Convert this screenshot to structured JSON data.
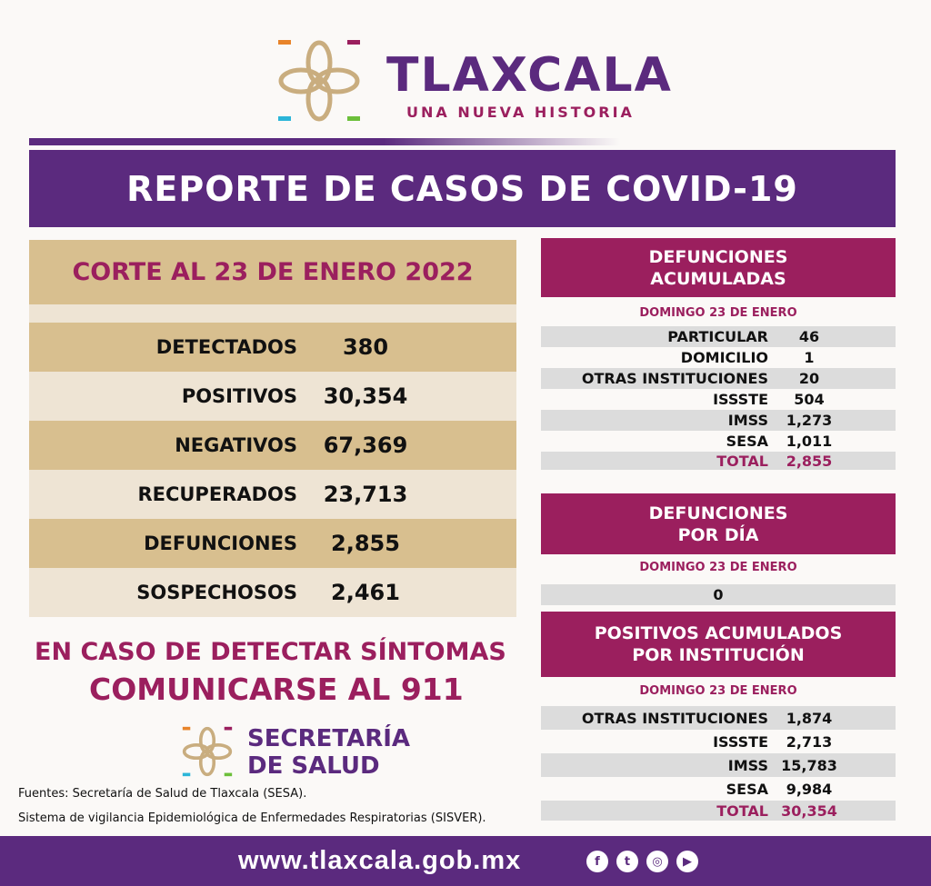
{
  "brand": {
    "title": "TLAXCALA",
    "subtitle": "UNA NUEVA HISTORIA"
  },
  "banner": "REPORTE DE CASOS DE COVID-19",
  "summary": {
    "header": "CORTE AL 23 DE ENERO 2022",
    "rows": [
      {
        "label": "DETECTADOS",
        "value": "380"
      },
      {
        "label": "POSITIVOS",
        "value": "30,354"
      },
      {
        "label": "NEGATIVOS",
        "value": "67,369"
      },
      {
        "label": "RECUPERADOS",
        "value": "23,713"
      },
      {
        "label": "DEFUNCIONES",
        "value": "2,855"
      },
      {
        "label": "SOSPECHOSOS",
        "value": "2,461"
      }
    ]
  },
  "cta": {
    "line1": "EN CASO DE DETECTAR SÍNTOMAS",
    "line2": "COMUNICARSE AL 911"
  },
  "secretaria": {
    "line1": "SECRETARÍA",
    "line2": "DE SALUD"
  },
  "sources": {
    "line1": "Fuentes:  Secretaría de Salud de Tlaxcala (SESA).",
    "line2": "Sistema de vigilancia Epidemiológica de Enfermedades Respiratorias (SISVER)."
  },
  "def_acum": {
    "title1": "DEFUNCIONES",
    "title2": "ACUMULADAS",
    "date": "DOMINGO 23 DE ENERO",
    "rows": [
      {
        "label": "PARTICULAR",
        "value": "46"
      },
      {
        "label": "DOMICILIO",
        "value": "1"
      },
      {
        "label": "OTRAS INSTITUCIONES",
        "value": "20"
      },
      {
        "label": "ISSSTE",
        "value": "504"
      },
      {
        "label": "IMSS",
        "value": "1,273"
      },
      {
        "label": "SESA",
        "value": "1,011"
      },
      {
        "label": "TOTAL",
        "value": "2,855"
      }
    ]
  },
  "def_dia": {
    "title1": "DEFUNCIONES",
    "title2": "POR DÍA",
    "date": "DOMINGO 23 DE ENERO",
    "value": "0"
  },
  "pos_inst": {
    "title1": "POSITIVOS ACUMULADOS",
    "title2": "POR INSTITUCIÓN",
    "date": "DOMINGO 23 DE ENERO",
    "rows": [
      {
        "label": "OTRAS INSTITUCIONES",
        "value": "1,874"
      },
      {
        "label": "ISSSTE",
        "value": "2,713"
      },
      {
        "label": "IMSS",
        "value": "15,783"
      },
      {
        "label": "SESA",
        "value": "9,984"
      },
      {
        "label": "TOTAL",
        "value": "30,354"
      }
    ]
  },
  "footer": {
    "url": "www.tlaxcala.gob.mx",
    "social": [
      "facebook-icon",
      "twitter-icon",
      "instagram-icon",
      "youtube-icon"
    ]
  },
  "colors": {
    "purple": "#5b2a7e",
    "magenta": "#9b1f5e",
    "tan": "#d8bf8f",
    "beige": "#eee4d4",
    "gray": "#dcdcdc"
  }
}
